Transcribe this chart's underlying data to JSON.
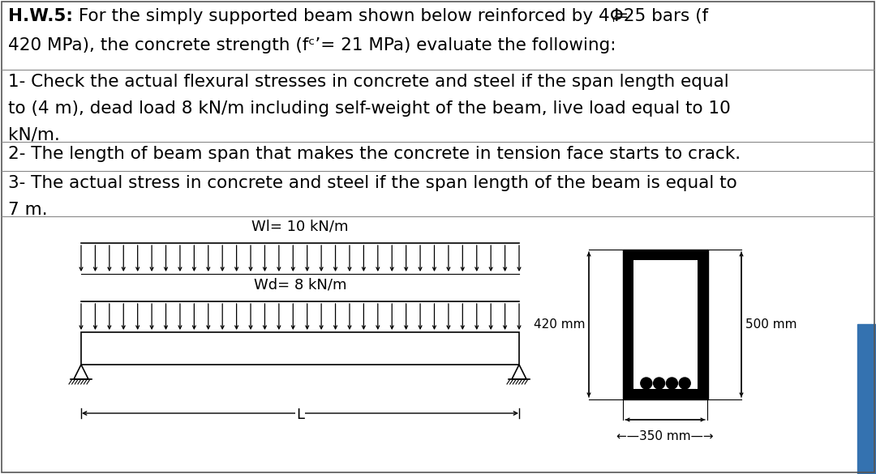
{
  "bg_color": "#ffffff",
  "border_color": "#000000",
  "text_color": "#000000",
  "sidebar_color": "#3472b0",
  "n_arrows": 32,
  "wl_label": "Wl= 10 kN/m",
  "wd_label": "Wd= 8 kN/m",
  "dim_420": "420 mm",
  "dim_500": "500 mm",
  "dim_350": "350 mm",
  "span_label": "L"
}
